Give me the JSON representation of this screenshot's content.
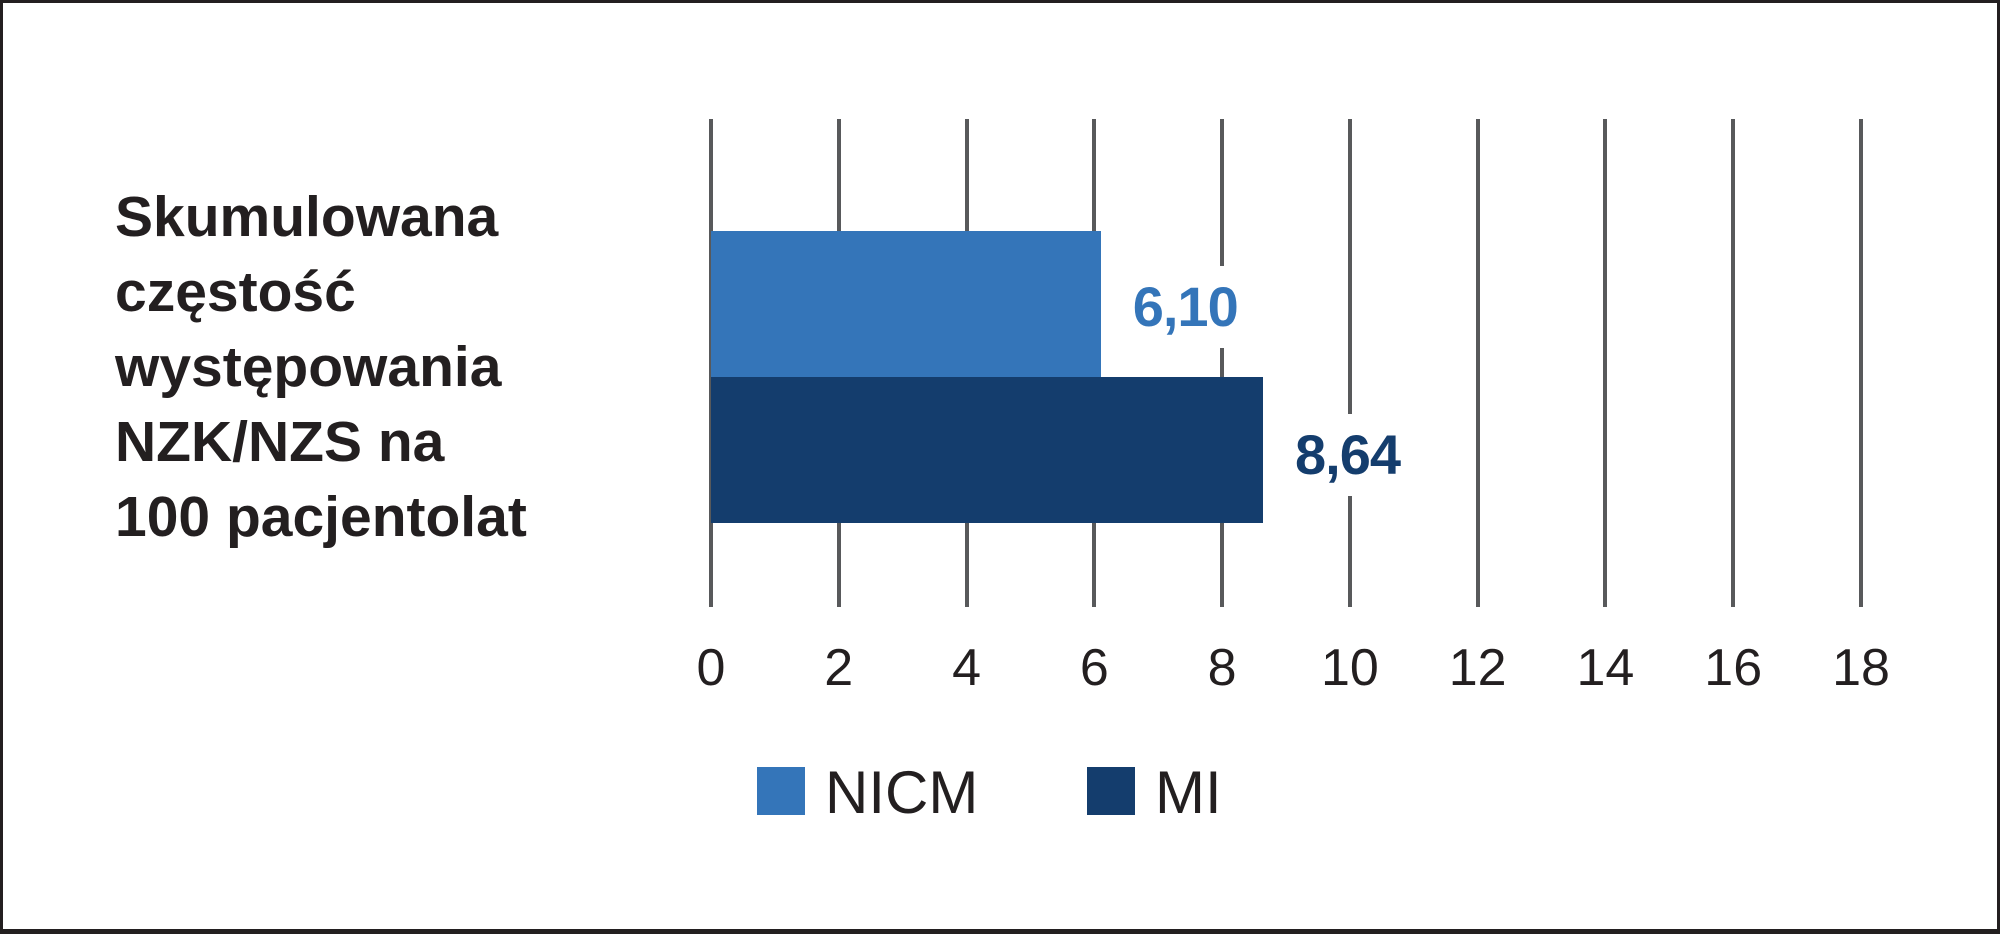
{
  "chart_data": {
    "type": "bar",
    "orientation": "horizontal",
    "title": "Skumulowana częstość występowania NZK/NZS na 100 pacjentolat",
    "title_lines": [
      "Skumulowana",
      "częstość",
      "występowania",
      "NZK/NZS na",
      "100 pacjentolat"
    ],
    "categories": [
      "NICM",
      "MI"
    ],
    "series": [
      {
        "name": "NICM",
        "values": [
          6.1
        ],
        "color": "#3475b9",
        "label": "6,10"
      },
      {
        "name": "MI",
        "values": [
          8.64
        ],
        "color": "#143d6d",
        "label": "8,64"
      }
    ],
    "xlabel": "",
    "ylabel": "",
    "xlim": [
      0,
      18
    ],
    "x_ticks": [
      "0",
      "2",
      "4",
      "6",
      "8",
      "10",
      "12",
      "14",
      "16",
      "18"
    ],
    "grid": true,
    "legend_position": "bottom",
    "legend": [
      {
        "label": "NICM",
        "color": "#3475b9"
      },
      {
        "label": "MI",
        "color": "#143d6d"
      }
    ]
  },
  "colors": {
    "nicm": "#3475b9",
    "mi": "#143d6d",
    "gridline": "#58595b",
    "text": "#231f20",
    "border": "#231f20"
  }
}
